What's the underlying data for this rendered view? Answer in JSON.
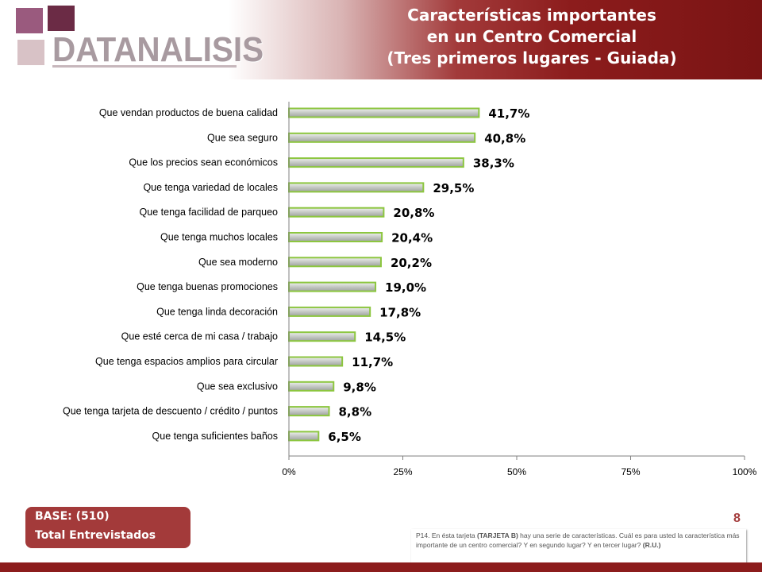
{
  "header": {
    "logo_text": "DATANALISIS",
    "title_lines": [
      "Características importantes",
      "en un Centro Comercial",
      "(Tres primeros lugares - Guiada)"
    ]
  },
  "chart_data": {
    "type": "bar",
    "orientation": "horizontal",
    "categories": [
      "Que vendan productos de buena calidad",
      "Que sea seguro",
      "Que los precios sean económicos",
      "Que tenga variedad de locales",
      "Que tenga facilidad de parqueo",
      "Que tenga muchos locales",
      "Que sea moderno",
      "Que tenga buenas promociones",
      "Que tenga linda decoración",
      "Que esté cerca de mi casa / trabajo",
      "Que tenga espacios amplios para circular",
      "Que sea exclusivo",
      "Que tenga tarjeta de descuento / crédito / puntos",
      "Que tenga suficientes baños"
    ],
    "values": [
      41.7,
      40.8,
      38.3,
      29.5,
      20.8,
      20.4,
      20.2,
      19.0,
      17.8,
      14.5,
      11.7,
      9.8,
      8.8,
      6.5
    ],
    "value_labels": [
      "41,7%",
      "40,8%",
      "38,3%",
      "29,5%",
      "20,8%",
      "20,4%",
      "20,2%",
      "19,0%",
      "17,8%",
      "14,5%",
      "11,7%",
      "9,8%",
      "8,8%",
      "6,5%"
    ],
    "xlim": [
      0,
      100
    ],
    "xticks": [
      0,
      25,
      50,
      75,
      100
    ],
    "xtick_labels": [
      "0%",
      "25%",
      "50%",
      "75%",
      "100%"
    ],
    "colors": {
      "bar_fill": "#c4c8c4",
      "bar_border": "#8cc63f"
    }
  },
  "base": {
    "line1": "BASE:  (510)",
    "line2": "Total Entrevistados"
  },
  "page_number": "8",
  "footnote": {
    "part1": "P14. En ésta tarjeta ",
    "part2": "(TARJETA B)",
    "part3": " hay una serie de características.  Cuál es para usted la  característica más importante de un centro comercial?  Y en segundo lugar? Y en tercer lugar? ",
    "part4": "(R.U.)"
  },
  "colors": {
    "brand": "#8c1c1c",
    "base_box": "#a33a3a"
  }
}
